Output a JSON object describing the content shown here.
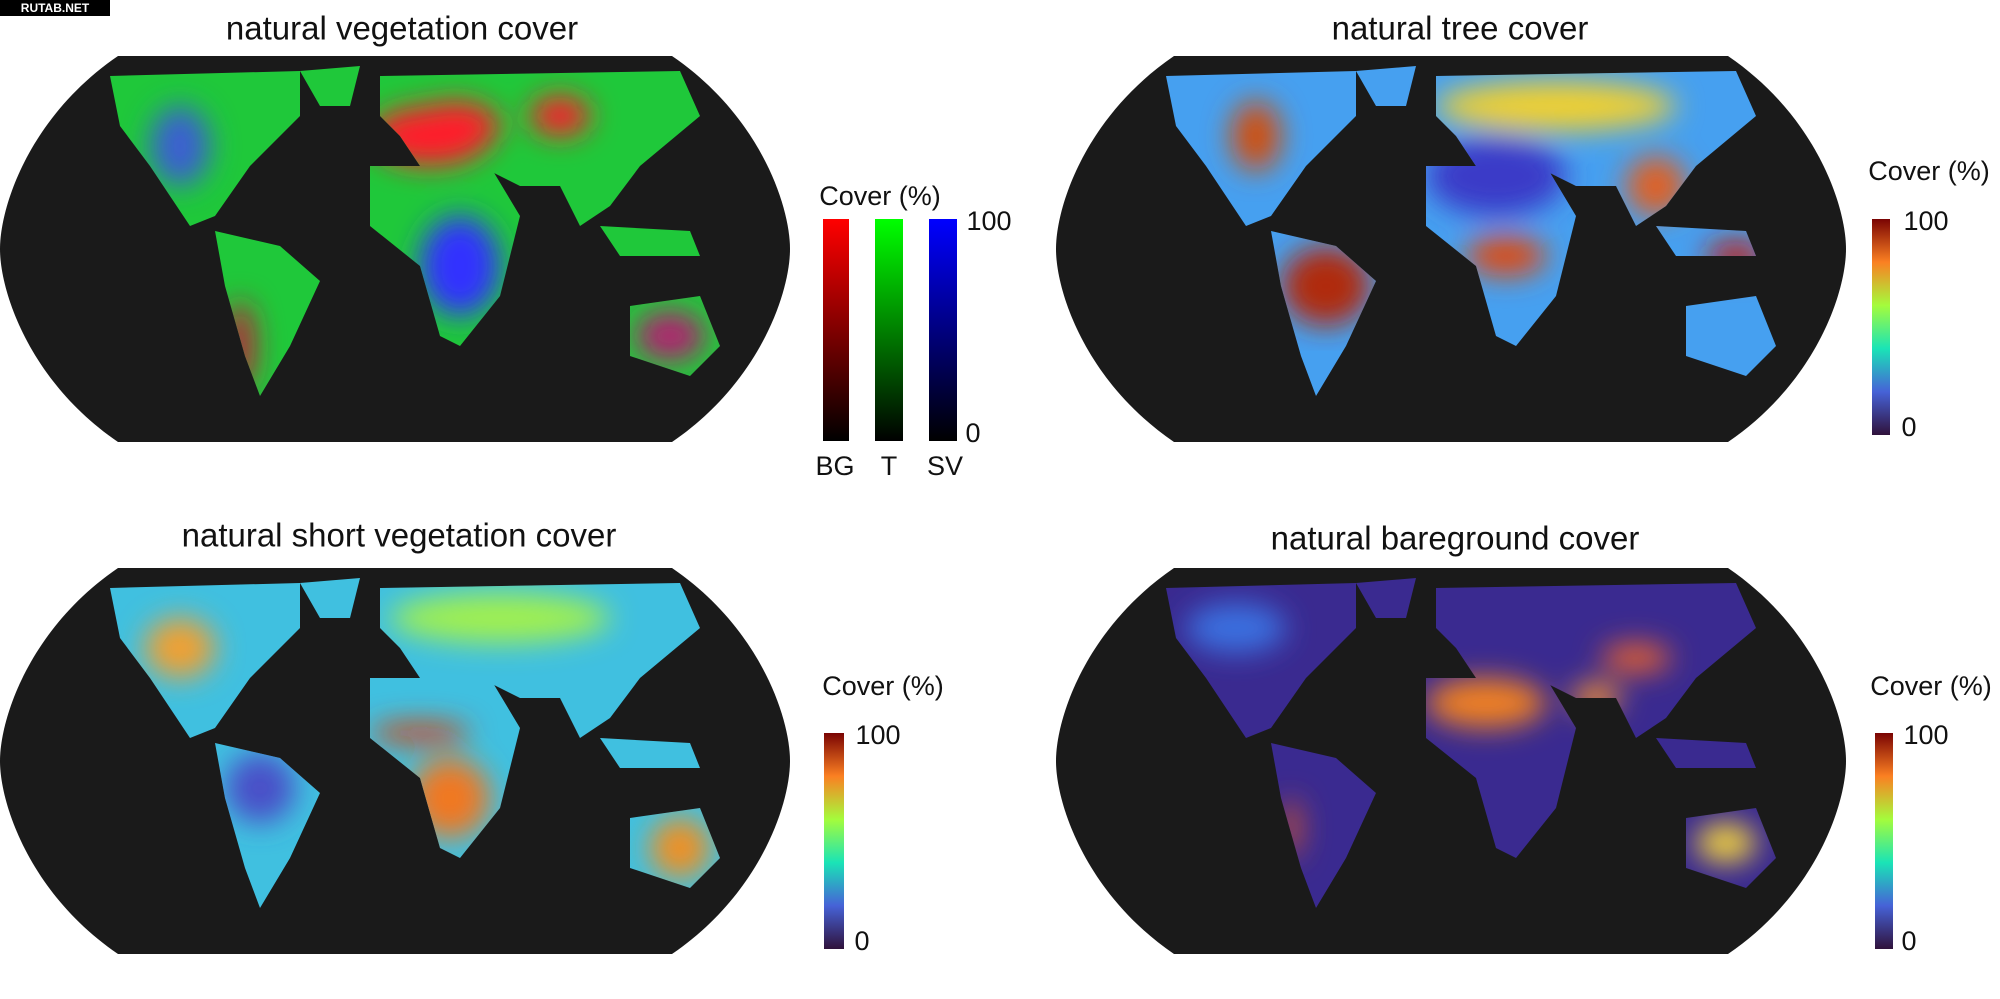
{
  "watermark": "RUTAB.NET",
  "panels": [
    {
      "title": "natural vegetation cover",
      "legend": {
        "label": "Cover (%)",
        "ticks": [
          0,
          100
        ],
        "channels": [
          "BG",
          "T",
          "SV"
        ]
      }
    },
    {
      "title": "natural tree cover",
      "legend": {
        "label": "Cover (%)",
        "ticks": [
          0,
          100
        ]
      }
    },
    {
      "title": "natural short vegetation cover",
      "legend": {
        "label": "Cover (%)",
        "ticks": [
          0,
          100
        ]
      }
    },
    {
      "title": "natural bareground cover",
      "legend": {
        "label": "Cover (%)",
        "ticks": [
          0,
          100
        ]
      }
    }
  ]
}
